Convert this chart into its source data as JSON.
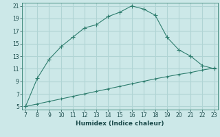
{
  "xlabel": "Humidex (Indice chaleur)",
  "line1_x": [
    7,
    8,
    9,
    10,
    11,
    12,
    13,
    14,
    15,
    16,
    17,
    18,
    19,
    20,
    21,
    22,
    23
  ],
  "line1_y": [
    5,
    9.5,
    12.5,
    14.5,
    16,
    17.5,
    18,
    19.3,
    20,
    21,
    20.5,
    19.5,
    16,
    14,
    13,
    11.5,
    11
  ],
  "line2_x": [
    7,
    8,
    9,
    10,
    11,
    12,
    13,
    14,
    15,
    16,
    17,
    18,
    19,
    20,
    21,
    22,
    23
  ],
  "line2_y": [
    5,
    5.4,
    5.8,
    6.2,
    6.6,
    7.0,
    7.4,
    7.8,
    8.2,
    8.6,
    9.0,
    9.4,
    9.75,
    10.1,
    10.4,
    10.8,
    11.1
  ],
  "line_color": "#2e7d6e",
  "bg_color": "#cce8e8",
  "grid_color": "#b0d4d4",
  "xlim": [
    7,
    23
  ],
  "ylim": [
    5,
    21
  ],
  "xticks": [
    7,
    8,
    9,
    10,
    11,
    12,
    13,
    14,
    15,
    16,
    17,
    18,
    19,
    20,
    21,
    22,
    23
  ],
  "yticks": [
    5,
    7,
    9,
    11,
    13,
    15,
    17,
    19,
    21
  ]
}
